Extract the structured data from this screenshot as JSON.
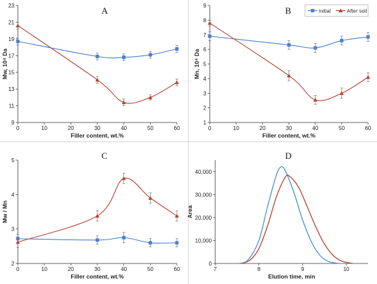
{
  "colors": {
    "initial": "#4a7fd4",
    "after_soil": "#b5452e",
    "plot_d_blue": "#4a90d9",
    "plot_d_red": "#b5452e"
  },
  "legend": {
    "initial": "Initial",
    "after_soil": "After soil",
    "placement": "top-right of panel B"
  },
  "chart_data": [
    {
      "panel": "A",
      "type": "line",
      "xlabel": "Filler content, wt.%",
      "ylabel": "Mw, 10⁴ Da",
      "xlim": [
        0,
        60
      ],
      "ylim": [
        9,
        23
      ],
      "xticks": [
        0,
        10,
        20,
        30,
        40,
        50,
        60
      ],
      "yticks": [
        9,
        11,
        13,
        15,
        17,
        19,
        21,
        23
      ],
      "series": [
        {
          "name": "Initial",
          "x": [
            0,
            30,
            40,
            50,
            60
          ],
          "values": [
            18.7,
            16.9,
            16.8,
            17.1,
            17.8
          ],
          "err": [
            0.4,
            0.4,
            0.4,
            0.4,
            0.4
          ]
        },
        {
          "name": "After soil",
          "x": [
            0,
            30,
            40,
            50,
            60
          ],
          "values": [
            20.6,
            14.1,
            11.4,
            12.0,
            13.8
          ],
          "err": [
            0.4,
            0.4,
            0.4,
            0.3,
            0.4
          ]
        }
      ]
    },
    {
      "panel": "B",
      "type": "line",
      "xlabel": "Filler content, wt.%",
      "ylabel": "Mn, 10⁴ Da",
      "xlim": [
        0,
        60
      ],
      "ylim": [
        1,
        9
      ],
      "xticks": [
        0,
        10,
        20,
        30,
        40,
        50,
        60
      ],
      "yticks": [
        1,
        2,
        3,
        4,
        5,
        6,
        7,
        8,
        9
      ],
      "series": [
        {
          "name": "Initial",
          "x": [
            0,
            30,
            40,
            50,
            60
          ],
          "values": [
            6.9,
            6.3,
            6.1,
            6.6,
            6.85
          ],
          "err": [
            0.3,
            0.3,
            0.3,
            0.3,
            0.3
          ]
        },
        {
          "name": "After soil",
          "x": [
            0,
            30,
            40,
            50,
            60
          ],
          "values": [
            7.8,
            4.2,
            2.55,
            3.0,
            4.1
          ],
          "err": [
            0.2,
            0.35,
            0.3,
            0.35,
            0.3
          ]
        }
      ]
    },
    {
      "panel": "C",
      "type": "line",
      "xlabel": "Filler content, wt.%",
      "ylabel": "Mw / Mn",
      "xlim": [
        0,
        60
      ],
      "ylim": [
        2,
        5
      ],
      "xticks": [
        0,
        10,
        20,
        30,
        40,
        50,
        60
      ],
      "yticks": [
        2,
        3,
        4,
        5
      ],
      "series": [
        {
          "name": "Initial",
          "x": [
            0,
            30,
            40,
            50,
            60
          ],
          "values": [
            2.72,
            2.68,
            2.75,
            2.6,
            2.6
          ],
          "err": [
            0.12,
            0.12,
            0.15,
            0.12,
            0.12
          ]
        },
        {
          "name": "After soil",
          "x": [
            0,
            30,
            40,
            50,
            60
          ],
          "values": [
            2.62,
            3.38,
            4.47,
            3.9,
            3.38
          ],
          "err": [
            0.15,
            0.15,
            0.15,
            0.15,
            0.15
          ]
        }
      ]
    },
    {
      "panel": "D",
      "type": "line",
      "xlabel": "Elution time, min",
      "ylabel": "Area",
      "xlim": [
        7,
        10.5
      ],
      "ylim": [
        0,
        45000
      ],
      "xticks": [
        7,
        8,
        9,
        10
      ],
      "yticks": [
        0,
        10000,
        20000,
        30000,
        40000
      ],
      "ytick_labels": [
        "0",
        "10,000",
        "20,000",
        "30,000",
        "40,000"
      ],
      "series": [
        {
          "name": "Initial",
          "x": [
            7.55,
            7.75,
            8.0,
            8.2,
            8.4,
            8.5,
            8.6,
            8.8,
            9.0,
            9.2,
            9.4,
            9.6,
            9.85
          ],
          "values": [
            0,
            1500,
            10000,
            25000,
            38500,
            42000,
            40500,
            31000,
            19000,
            9500,
            3500,
            800,
            0
          ]
        },
        {
          "name": "After soil",
          "x": [
            7.6,
            7.8,
            8.0,
            8.2,
            8.4,
            8.6,
            8.7,
            8.9,
            9.1,
            9.3,
            9.5,
            9.7,
            9.9,
            10.15
          ],
          "values": [
            0,
            1500,
            6500,
            16500,
            29000,
            37500,
            38000,
            33500,
            25000,
            16000,
            8500,
            3500,
            1000,
            0
          ]
        }
      ]
    }
  ]
}
